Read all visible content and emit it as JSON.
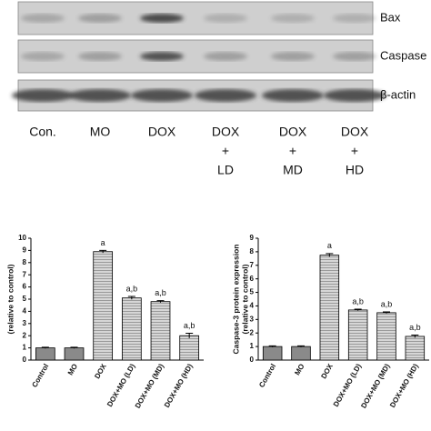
{
  "blot": {
    "rows": [
      "Bax",
      "Caspase",
      "β-actin"
    ],
    "lanes": [
      [
        "Con."
      ],
      [
        "MO"
      ],
      [
        "DOX"
      ],
      [
        "DOX",
        "+",
        "LD"
      ],
      [
        "DOX",
        "+",
        "MD"
      ],
      [
        "DOX",
        "+",
        "HD"
      ]
    ]
  },
  "chart_data": [
    {
      "type": "bar",
      "ylabel": [
        "(relative to control)"
      ],
      "categories": [
        "Control",
        "MO",
        "DOX",
        "DOX+MO (LD)",
        "DOX+MO (MD)",
        "DOX+MO (HD)"
      ],
      "values": [
        1.0,
        1.0,
        8.9,
        5.1,
        4.8,
        2.0
      ],
      "errors": [
        0.05,
        0.05,
        0.1,
        0.12,
        0.08,
        0.2
      ],
      "colors": [
        "#8a8a8a",
        "#8a8a8a",
        "#cfcfcf",
        "#cfcfcf",
        "#cfcfcf",
        "#cfcfcf"
      ],
      "annotations": [
        {
          "category": "DOX",
          "text": "a"
        },
        {
          "category": "DOX+MO (LD)",
          "text": "a,b"
        },
        {
          "category": "DOX+MO (MD)",
          "text": "a,b"
        },
        {
          "category": "DOX+MO (HD)",
          "text": "a,b"
        }
      ],
      "ylim": [
        0,
        10
      ],
      "yticks": [
        0,
        1,
        2,
        3,
        4,
        5,
        6,
        7,
        8,
        9,
        10
      ]
    },
    {
      "type": "bar",
      "ylabel": [
        "Caspase-3 protein expression",
        "(relative to control)"
      ],
      "categories": [
        "Control",
        "MO",
        "DOX",
        "DOX+MO (LD)",
        "DOX+MO (MD)",
        "DOX+MO (HD)"
      ],
      "values": [
        1.0,
        1.0,
        7.75,
        3.7,
        3.5,
        1.75
      ],
      "errors": [
        0.05,
        0.05,
        0.12,
        0.06,
        0.06,
        0.1
      ],
      "colors": [
        "#8a8a8a",
        "#8a8a8a",
        "#cfcfcf",
        "#cfcfcf",
        "#cfcfcf",
        "#cfcfcf"
      ],
      "annotations": [
        {
          "category": "DOX",
          "text": "a"
        },
        {
          "category": "DOX+MO (LD)",
          "text": "a,b"
        },
        {
          "category": "DOX+MO (MD)",
          "text": "a,b"
        },
        {
          "category": "DOX+MO (HD)",
          "text": "a,b"
        }
      ],
      "ylim": [
        0,
        9
      ],
      "yticks": [
        0,
        1,
        2,
        3,
        4,
        5,
        6,
        7,
        8,
        9
      ]
    }
  ]
}
